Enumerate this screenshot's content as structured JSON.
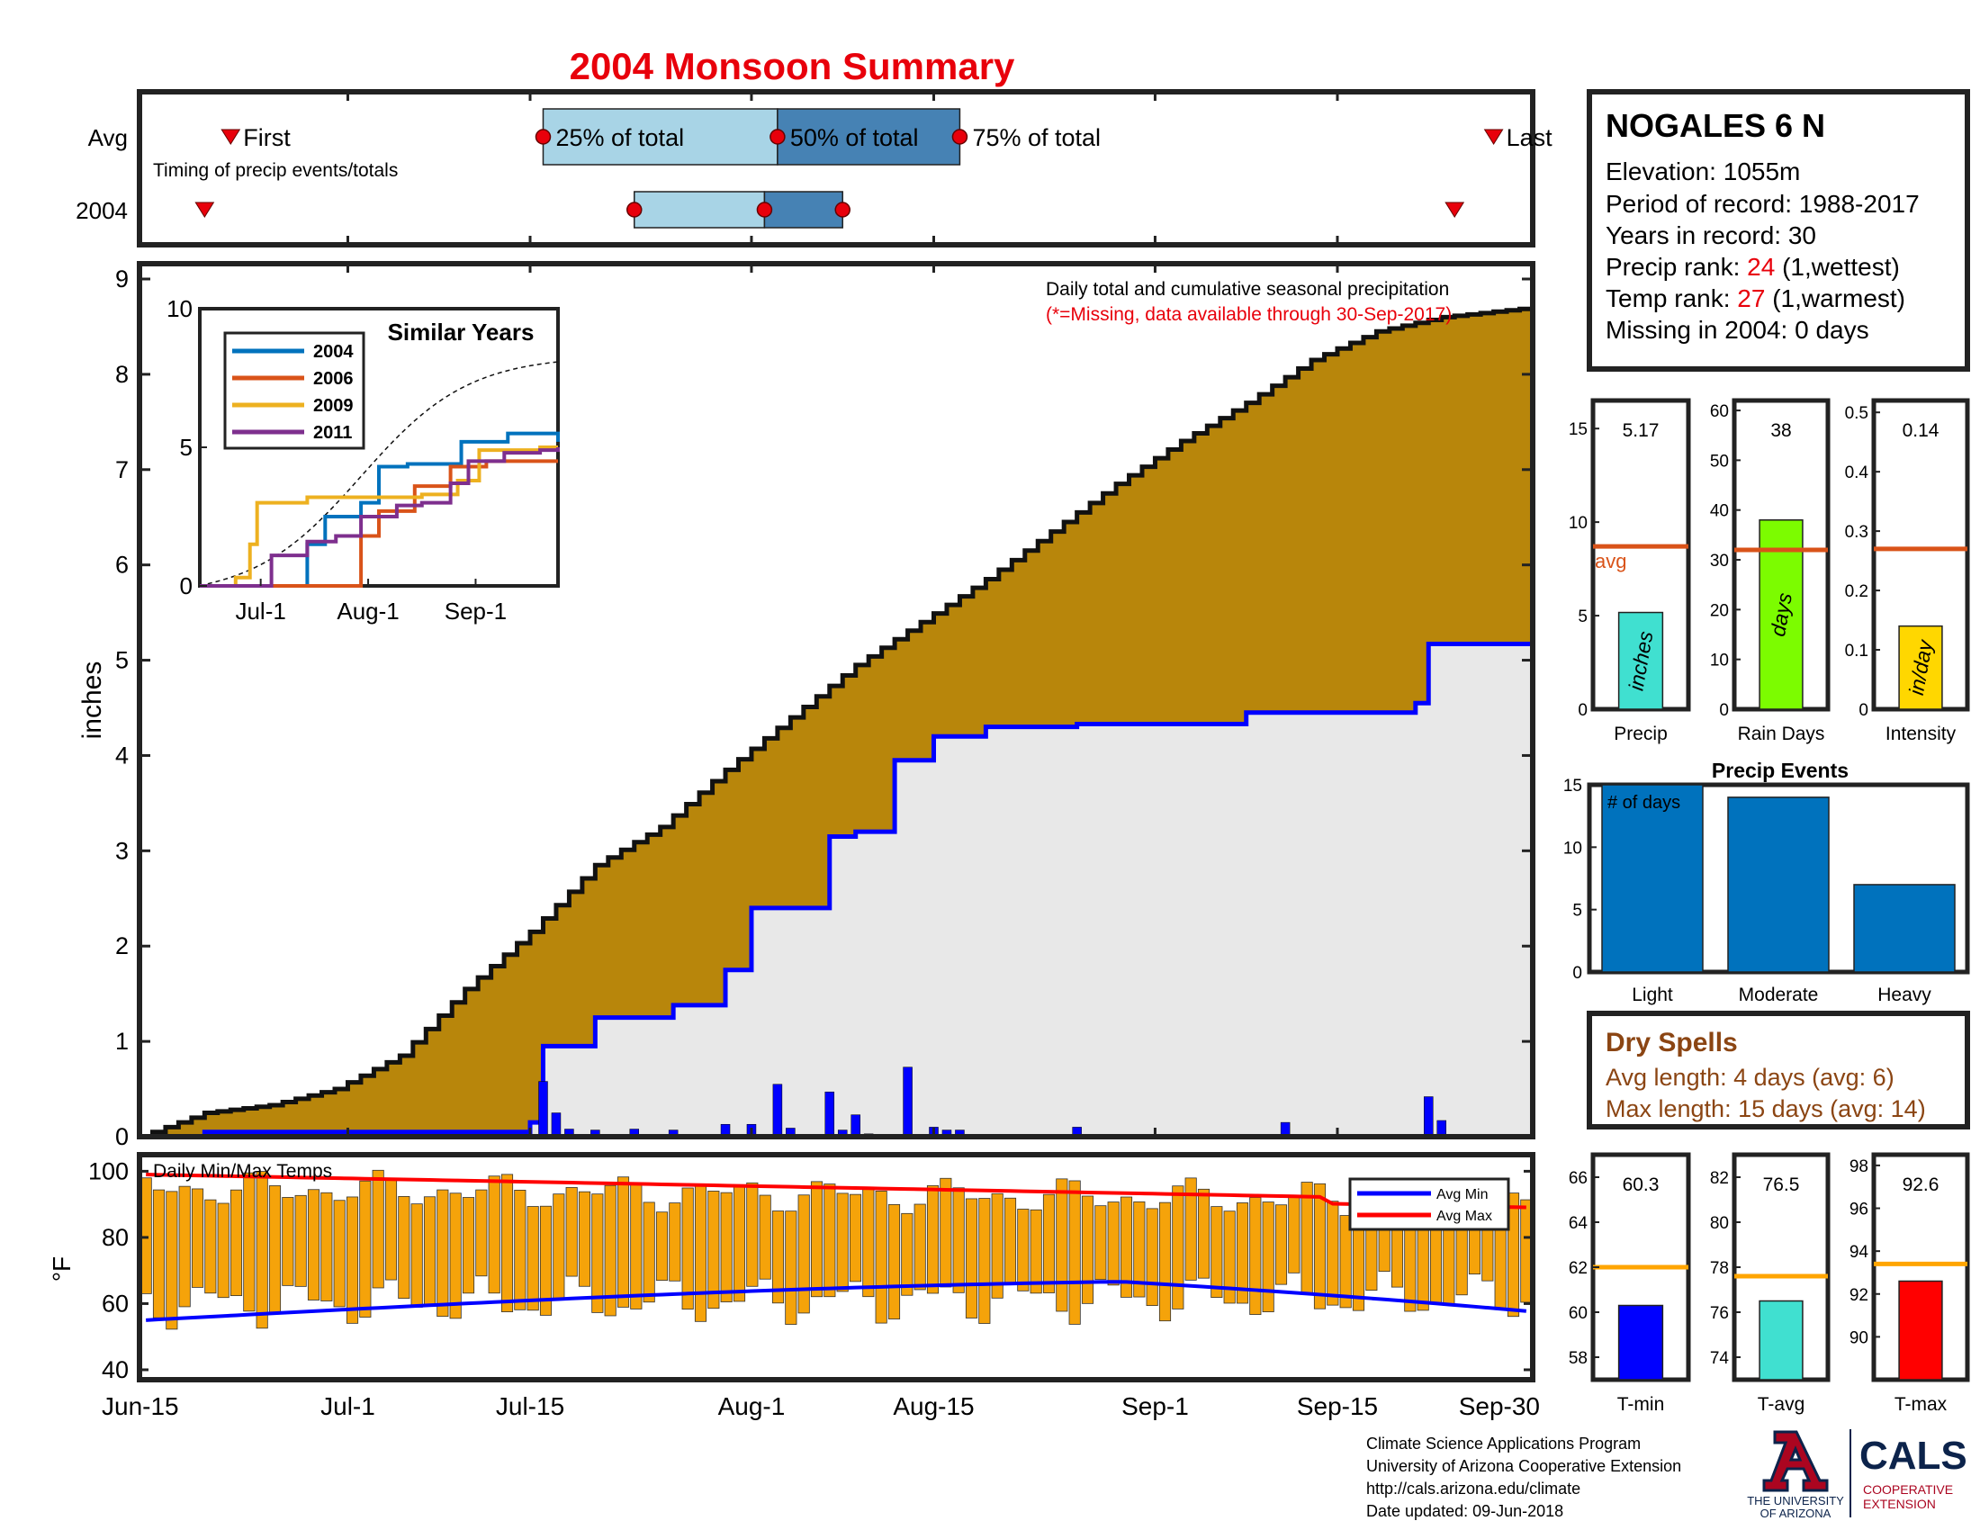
{
  "title": "2004 Monsoon Summary",
  "colors": {
    "title": "#e8000b",
    "accent_red": "#e8000b",
    "envelope": "#b8860b",
    "average_area": "#e8e8e8",
    "current_line": "#0000ff",
    "temp_bar": "#f5a30a",
    "avg_max": "#ff0000",
    "avg_min": "#0000ff",
    "quartile_light": "#a8d4e6",
    "quartile_dark": "#4682b4",
    "precip_bar": "#40e0d0",
    "raindays_bar": "#7cfc00",
    "intensity_bar": "#ffd700",
    "avg_line": "#d95319",
    "events_bar": "#0072bd",
    "dry_spells": "#8b4513",
    "temp_avg_line": "#ffa500"
  },
  "timing": {
    "row_labels": [
      "Avg",
      "2004"
    ],
    "note": "Timing of precip events/totals",
    "first_label": "First",
    "last_label": "Last",
    "q25_label": "25% of total",
    "q50_label": "50% of total",
    "q75_label": "75% of total",
    "avg": {
      "first": "2004-06-22",
      "q25": "2004-07-16",
      "q50": "2004-08-03",
      "q75": "2004-08-17",
      "last": "2004-09-27"
    },
    "year": {
      "first": "2004-06-20",
      "q25": "2004-07-23",
      "q50": "2004-08-02",
      "q75": "2004-08-08",
      "last": "2004-09-24"
    }
  },
  "station": {
    "name": "NOGALES 6 N",
    "elevation": "Elevation: 1055m",
    "period": "Period of record: 1988-2017",
    "years": "Years in record: 30",
    "precip_rank_label": "Precip rank: ",
    "precip_rank": "24",
    "precip_rank_note": " (1,wettest)",
    "temp_rank_label": "Temp rank: ",
    "temp_rank": "27",
    "temp_rank_note": " (1,warmest)",
    "missing": "Missing in 2004: 0 days"
  },
  "main_chart": {
    "ylabel": "inches",
    "caption": "Daily total and cumulative seasonal precipitation",
    "missing_note": "(*=Missing, data available through 30-Sep-2017)",
    "yticks": [
      0,
      1,
      2,
      3,
      4,
      5,
      6,
      7,
      8,
      9
    ],
    "xticks": [
      "Jun-15",
      "Jul-1",
      "Jul-15",
      "Aug-1",
      "Aug-15",
      "Sep-1",
      "Sep-15",
      "Sep-30"
    ]
  },
  "inset": {
    "title": "Similar Years",
    "yticks": [
      0,
      5,
      10
    ],
    "xticks": [
      "Jul-1",
      "Aug-1",
      "Sep-1"
    ],
    "legend": [
      "2004",
      "2006",
      "2009",
      "2011"
    ]
  },
  "temp_chart": {
    "title": "Daily Min/Max Temps",
    "ylabel": "°F",
    "yticks": [
      40,
      60,
      80,
      100
    ],
    "legend": [
      "Avg Min",
      "Avg Max"
    ]
  },
  "stats": {
    "precip": {
      "value": "5.17",
      "label": "Precip",
      "unit": "inches",
      "yticks": [
        0,
        5,
        10,
        15
      ],
      "avg_label": "avg"
    },
    "raindays": {
      "value": "38",
      "label": "Rain Days",
      "unit": "days",
      "yticks": [
        0,
        10,
        20,
        30,
        40,
        50,
        60
      ]
    },
    "intensity": {
      "value": "0.14",
      "label": "Intensity",
      "unit": "in/day",
      "yticks": [
        0,
        0.1,
        0.2,
        0.3,
        0.4,
        0.5
      ]
    }
  },
  "events": {
    "title": "Precip Events",
    "ylabel_inside": "# of days",
    "yticks": [
      0,
      5,
      10,
      15
    ]
  },
  "dry_spells": {
    "title": "Dry Spells",
    "avg_length": "Avg length: 4 days (avg: 6)",
    "max_length": "Max length: 15 days (avg: 14)"
  },
  "temps": {
    "tmin": {
      "value": "60.3",
      "label": "T-min",
      "yticks": [
        58,
        60,
        62,
        64,
        66
      ]
    },
    "tavg": {
      "value": "76.5",
      "label": "T-avg",
      "yticks": [
        74,
        76,
        78,
        80,
        82
      ]
    },
    "tmax": {
      "value": "92.6",
      "label": "T-max",
      "yticks": [
        90,
        92,
        94,
        96,
        98
      ]
    }
  },
  "footer": {
    "line1": "Climate Science Applications Program",
    "line2": "University of Arizona Cooperative Extension",
    "line3": "http://cals.arizona.edu/climate",
    "line4": " Date updated: 09-Jun-2018",
    "ua_line1": "THE UNIVERSITY",
    "ua_line2": "OF ARIZONA",
    "cals": "CALS",
    "cals_sub1": "COOPERATIVE",
    "cals_sub2": "EXTENSION"
  },
  "chart_data": [
    {
      "type": "area",
      "title": "2004 Monsoon Summary",
      "ylabel": "inches",
      "x_start": "2004-06-15",
      "x_end": "2004-09-30",
      "ylim": [
        0,
        9
      ],
      "grid": false,
      "series": [
        {
          "x": [
            "2004-06-15",
            "2004-06-20",
            "2004-06-25",
            "2004-06-30",
            "2004-07-05",
            "2004-07-10",
            "2004-07-15",
            "2004-07-20",
            "2004-07-25",
            "2004-07-30",
            "2004-08-04",
            "2004-08-09",
            "2004-08-14",
            "2004-08-19",
            "2004-08-24",
            "2004-08-29",
            "2004-09-03",
            "2004-09-08",
            "2004-09-13",
            "2004-09-18",
            "2004-09-23",
            "2004-09-30"
          ],
          "values": [
            0.0,
            0.25,
            0.33,
            0.5,
            0.85,
            1.55,
            2.15,
            2.85,
            3.25,
            3.85,
            4.4,
            4.95,
            5.4,
            5.85,
            6.35,
            6.85,
            7.3,
            7.7,
            8.15,
            8.45,
            8.6,
            8.7
          ]
        },
        {
          "x": [
            "2004-06-15",
            "2004-06-20",
            "2004-07-15",
            "2004-07-16",
            "2004-07-20",
            "2004-07-26",
            "2004-07-30",
            "2004-08-01",
            "2004-08-07",
            "2004-08-09",
            "2004-08-12",
            "2004-08-15",
            "2004-08-19",
            "2004-08-26",
            "2004-09-08",
            "2004-09-21",
            "2004-09-22",
            "2004-09-30"
          ],
          "values": [
            0.0,
            0.05,
            0.15,
            0.95,
            1.25,
            1.38,
            1.75,
            2.4,
            3.15,
            3.2,
            3.95,
            4.2,
            4.3,
            4.33,
            4.45,
            4.55,
            5.17,
            5.17
          ]
        },
        {
          "x": [
            "2004-07-16",
            "2004-07-17",
            "2004-07-18",
            "2004-07-20",
            "2004-07-23",
            "2004-07-26",
            "2004-07-30",
            "2004-08-01",
            "2004-08-03",
            "2004-08-04",
            "2004-08-07",
            "2004-08-08",
            "2004-08-09",
            "2004-08-10",
            "2004-08-13",
            "2004-08-15",
            "2004-08-16",
            "2004-08-17",
            "2004-08-26",
            "2004-09-11",
            "2004-09-22",
            "2004-09-23"
          ],
          "values": [
            0.58,
            0.25,
            0.08,
            0.07,
            0.08,
            0.07,
            0.13,
            0.13,
            0.55,
            0.09,
            0.47,
            0.07,
            0.23,
            0.03,
            0.73,
            0.1,
            0.07,
            0.07,
            0.1,
            0.15,
            0.42,
            0.17
          ]
        }
      ]
    },
    {
      "type": "line",
      "title": "Similar Years",
      "categories": [
        "Jul-1",
        "Aug-1",
        "Sep-1"
      ],
      "ylim": [
        0,
        10
      ],
      "series": [
        {
          "name": "2004",
          "x": [
            0,
            15,
            20,
            25,
            30,
            35,
            45,
            50,
            58,
            65,
            73,
            80,
            86,
            95,
            100
          ],
          "values": [
            0,
            0,
            0,
            0,
            1.5,
            2.5,
            3,
            4.3,
            4.4,
            4.4,
            5.2,
            5.2,
            5.5,
            5.5,
            5.2
          ]
        },
        {
          "name": "2006",
          "x": [
            0,
            10,
            20,
            30,
            38,
            45,
            50,
            60,
            70,
            80,
            95,
            100
          ],
          "values": [
            0,
            0,
            0,
            0,
            0,
            1.8,
            2.7,
            3.6,
            4.3,
            4.5,
            4.5,
            4.5
          ]
        },
        {
          "name": "2009",
          "x": [
            0,
            10,
            14,
            16,
            20,
            30,
            45,
            55,
            62,
            72,
            78,
            85,
            95,
            100
          ],
          "values": [
            0,
            0.3,
            1.5,
            3,
            3,
            3.2,
            3.2,
            3.2,
            3.3,
            3.8,
            4.9,
            4.9,
            5,
            5
          ]
        },
        {
          "name": "2011",
          "x": [
            0,
            10,
            20,
            30,
            38,
            45,
            55,
            62,
            70,
            75,
            85,
            95,
            100
          ],
          "values": [
            0,
            0,
            1.1,
            1.6,
            1.8,
            2.5,
            2.9,
            3,
            3.7,
            4.5,
            4.8,
            4.9,
            5
          ]
        }
      ]
    },
    {
      "type": "bar",
      "title": "Daily Min/Max Temps",
      "ylabel": "°F",
      "ylim": [
        40,
        105
      ],
      "legend": [
        "Avg Min",
        "Avg Max"
      ]
    },
    {
      "type": "bar",
      "categories": [
        "Precip"
      ],
      "values": [
        5.17
      ],
      "ylabel": "inches",
      "ylim": [
        0,
        16.5
      ],
      "avg_line": 8.7
    },
    {
      "type": "bar",
      "categories": [
        "Rain Days"
      ],
      "values": [
        38
      ],
      "ylabel": "days",
      "ylim": [
        0,
        62
      ],
      "avg_line": 32
    },
    {
      "type": "bar",
      "categories": [
        "Intensity"
      ],
      "values": [
        0.14
      ],
      "ylabel": "in/day",
      "ylim": [
        0,
        0.52
      ],
      "avg_line": 0.27
    },
    {
      "type": "bar",
      "title": "Precip Events",
      "categories": [
        "Light",
        "Moderate",
        "Heavy"
      ],
      "values": [
        15,
        14,
        7
      ],
      "ylabel": "# of days",
      "ylim": [
        0,
        15
      ]
    },
    {
      "type": "bar",
      "categories": [
        "T-min"
      ],
      "values": [
        60.3
      ],
      "ylim": [
        57,
        67
      ],
      "avg_line": 62
    },
    {
      "type": "bar",
      "categories": [
        "T-avg"
      ],
      "values": [
        76.5
      ],
      "ylim": [
        73,
        83
      ],
      "avg_line": 77.6
    },
    {
      "type": "bar",
      "categories": [
        "T-max"
      ],
      "values": [
        92.6
      ],
      "ylim": [
        88,
        98.5
      ],
      "avg_line": 93.4
    }
  ]
}
